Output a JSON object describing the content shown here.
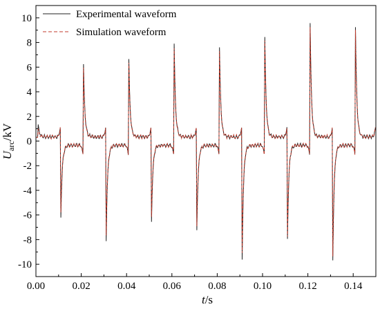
{
  "chart_data": {
    "type": "line",
    "xlabel_main": "t",
    "xlabel_unit": "/s",
    "ylabel_main": "U",
    "ylabel_sub": "arc",
    "ylabel_unit": "/kV",
    "xlim": [
      0.0,
      0.15
    ],
    "ylim": [
      -11,
      11
    ],
    "x_ticks": [
      0.0,
      0.02,
      0.04,
      0.06,
      0.08,
      0.1,
      0.12,
      0.14
    ],
    "x_tick_labels": [
      "0.00",
      "0.02",
      "0.04",
      "0.06",
      "0.08",
      "0.10",
      "0.12",
      "0.14"
    ],
    "y_ticks": [
      -10,
      -8,
      -6,
      -4,
      -2,
      0,
      2,
      4,
      6,
      8,
      10
    ],
    "y_tick_labels": [
      "-10",
      "-8",
      "-6",
      "-4",
      "-2",
      "0",
      "2",
      "4",
      "6",
      "8",
      "10"
    ],
    "grid": false,
    "legend_position": "top-left",
    "series": [
      {
        "name": "Experimental waveform",
        "color": "#222222",
        "dash": "solid",
        "peaks": [
          {
            "t": 0.001,
            "v": 1.3
          },
          {
            "t": 0.011,
            "v": -6.2
          },
          {
            "t": 0.021,
            "v": 6.2
          },
          {
            "t": 0.031,
            "v": -8.1
          },
          {
            "t": 0.041,
            "v": 6.6
          },
          {
            "t": 0.051,
            "v": -6.5
          },
          {
            "t": 0.061,
            "v": 7.9
          },
          {
            "t": 0.071,
            "v": -7.2
          },
          {
            "t": 0.081,
            "v": 7.6
          },
          {
            "t": 0.091,
            "v": -9.6
          },
          {
            "t": 0.101,
            "v": 8.4
          },
          {
            "t": 0.111,
            "v": -8.0
          },
          {
            "t": 0.121,
            "v": 9.6
          },
          {
            "t": 0.131,
            "v": -9.7
          },
          {
            "t": 0.141,
            "v": 9.3
          }
        ]
      },
      {
        "name": "Simulation waveform",
        "color": "#c0392b",
        "dash": "dashed",
        "peaks": [
          {
            "t": 0.001,
            "v": 1.0
          },
          {
            "t": 0.011,
            "v": -5.8
          },
          {
            "t": 0.021,
            "v": 5.9
          },
          {
            "t": 0.031,
            "v": -7.6
          },
          {
            "t": 0.041,
            "v": 6.3
          },
          {
            "t": 0.051,
            "v": -6.2
          },
          {
            "t": 0.061,
            "v": 7.5
          },
          {
            "t": 0.071,
            "v": -6.9
          },
          {
            "t": 0.081,
            "v": 7.3
          },
          {
            "t": 0.091,
            "v": -9.1
          },
          {
            "t": 0.101,
            "v": 8.1
          },
          {
            "t": 0.111,
            "v": -7.7
          },
          {
            "t": 0.121,
            "v": 9.2
          },
          {
            "t": 0.131,
            "v": -9.3
          },
          {
            "t": 0.141,
            "v": 9.0
          }
        ]
      }
    ]
  }
}
